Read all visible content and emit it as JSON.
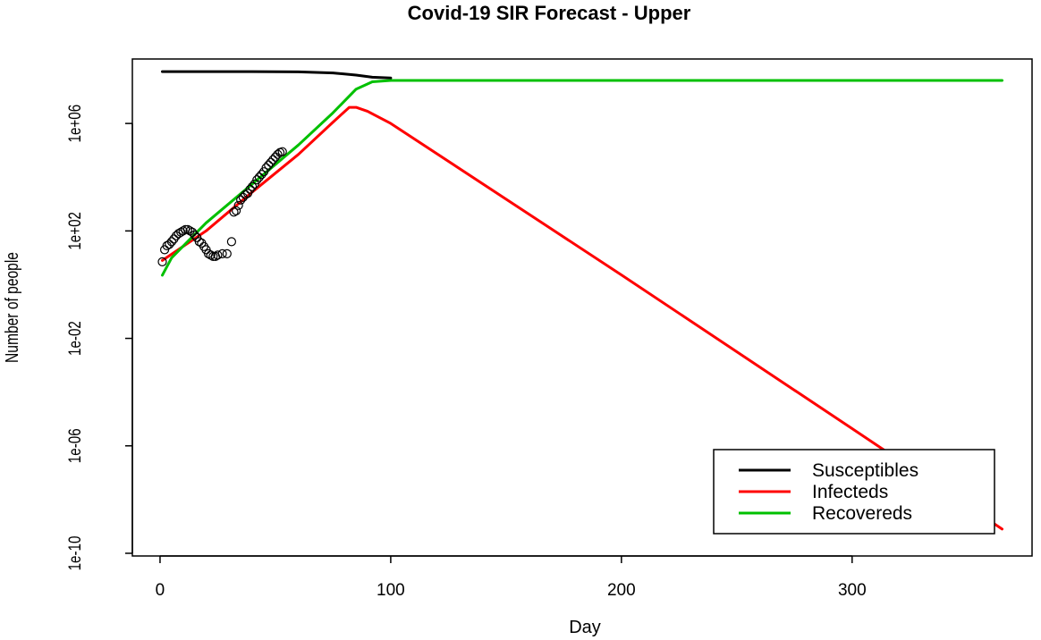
{
  "chart_data": {
    "type": "line",
    "title": "Covid-19 SIR Forecast - Upper",
    "xlabel": "Day",
    "ylabel": "Number of people",
    "xlim": [
      -12,
      378
    ],
    "ylim_log10": [
      -10.1,
      8.4
    ],
    "y_scale": "log",
    "x_ticks": [
      0,
      100,
      200,
      300
    ],
    "x_tick_labels": [
      "0",
      "100",
      "200",
      "300"
    ],
    "y_ticks_log10": [
      6,
      2,
      -2,
      -6,
      -10
    ],
    "y_tick_labels": [
      "1e+06",
      "1e+02",
      "1e-02",
      "1e-06",
      "1e-10"
    ],
    "legend_position": "bottom-right",
    "series": [
      {
        "name": "Susceptibles",
        "color": "#000000",
        "points_log10": [
          [
            1,
            7.93
          ],
          [
            40,
            7.93
          ],
          [
            60,
            7.92
          ],
          [
            75,
            7.88
          ],
          [
            85,
            7.8
          ],
          [
            92,
            7.72
          ],
          [
            100,
            7.69
          ]
        ]
      },
      {
        "name": "Infecteds",
        "color": "#ff0000",
        "points_log10": [
          [
            1,
            0.9
          ],
          [
            20,
            2.0
          ],
          [
            40,
            3.45
          ],
          [
            60,
            4.85
          ],
          [
            75,
            6.05
          ],
          [
            82,
            6.6
          ],
          [
            85,
            6.6
          ],
          [
            90,
            6.45
          ],
          [
            100,
            6.0
          ],
          [
            200,
            0.36
          ],
          [
            300,
            -5.36
          ],
          [
            365,
            -9.1
          ]
        ]
      },
      {
        "name": "Recovereds",
        "color": "#00c000",
        "points_log10": [
          [
            1,
            0.35
          ],
          [
            5,
            1.0
          ],
          [
            20,
            2.3
          ],
          [
            40,
            3.75
          ],
          [
            60,
            5.2
          ],
          [
            75,
            6.4
          ],
          [
            85,
            7.28
          ],
          [
            92,
            7.55
          ],
          [
            100,
            7.6
          ],
          [
            365,
            7.6
          ]
        ]
      }
    ],
    "observed_points": {
      "marker": "open-circle",
      "color": "#000000",
      "points_log10": [
        [
          1,
          0.85
        ],
        [
          2,
          1.3
        ],
        [
          3,
          1.45
        ],
        [
          4,
          1.5
        ],
        [
          5,
          1.6
        ],
        [
          6,
          1.7
        ],
        [
          7,
          1.82
        ],
        [
          8,
          1.9
        ],
        [
          9,
          1.95
        ],
        [
          10,
          2.0
        ],
        [
          11,
          2.05
        ],
        [
          12,
          2.05
        ],
        [
          13,
          2.0
        ],
        [
          14,
          1.95
        ],
        [
          15,
          1.85
        ],
        [
          16,
          1.75
        ],
        [
          17,
          1.6
        ],
        [
          18,
          1.55
        ],
        [
          19,
          1.42
        ],
        [
          20,
          1.3
        ],
        [
          21,
          1.15
        ],
        [
          22,
          1.1
        ],
        [
          23,
          1.05
        ],
        [
          24,
          1.05
        ],
        [
          25,
          1.1
        ],
        [
          27,
          1.15
        ],
        [
          29,
          1.15
        ],
        [
          31,
          1.6
        ],
        [
          32,
          2.7
        ],
        [
          33,
          2.75
        ],
        [
          34,
          2.95
        ],
        [
          35,
          3.15
        ],
        [
          36,
          3.25
        ],
        [
          37,
          3.35
        ],
        [
          38,
          3.4
        ],
        [
          39,
          3.55
        ],
        [
          40,
          3.65
        ],
        [
          41,
          3.75
        ],
        [
          42,
          3.9
        ],
        [
          43,
          4.0
        ],
        [
          44,
          4.1
        ],
        [
          45,
          4.2
        ],
        [
          46,
          4.35
        ],
        [
          47,
          4.45
        ],
        [
          48,
          4.55
        ],
        [
          49,
          4.65
        ],
        [
          50,
          4.75
        ],
        [
          51,
          4.85
        ],
        [
          52,
          4.92
        ],
        [
          53,
          4.95
        ]
      ]
    }
  }
}
